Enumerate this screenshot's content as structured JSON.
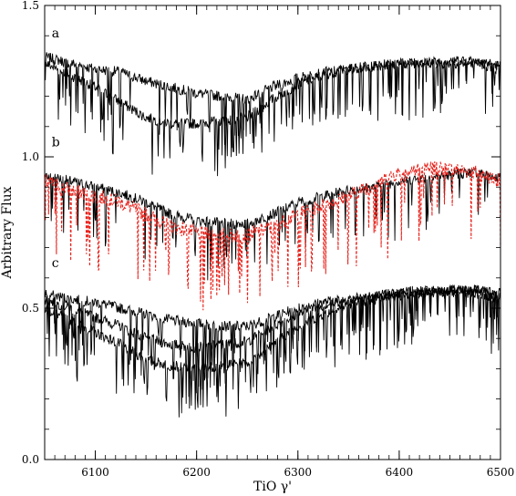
{
  "chart_data": {
    "type": "line",
    "title": "",
    "xlabel": "TiO γ'",
    "ylabel": "Arbitrary Flux",
    "xlim": [
      6050,
      6500
    ],
    "ylim": [
      0.0,
      1.5
    ],
    "x_ticks": [
      6100,
      6200,
      6300,
      6400,
      6500
    ],
    "x_tick_labels": [
      "6100",
      "6200",
      "6300",
      "6400",
      "6500"
    ],
    "y_ticks": [
      0.0,
      0.5,
      1.0,
      1.5
    ],
    "y_tick_labels": [
      "0.0",
      "0.5",
      "1.0",
      "1.5"
    ],
    "grid": false,
    "legend": "none",
    "panel_labels": [
      {
        "text": "a",
        "x": 6057,
        "y": 1.41
      },
      {
        "text": "b",
        "x": 6057,
        "y": 1.05
      },
      {
        "text": "c",
        "x": 6057,
        "y": 0.65
      }
    ],
    "series": [
      {
        "color": "#000000",
        "style": "solid",
        "x": [
          6050,
          6075,
          6100,
          6125,
          6150,
          6175,
          6200,
          6225,
          6250,
          6275,
          6300,
          6325,
          6350,
          6375,
          6400,
          6425,
          6450,
          6475,
          6500
        ],
        "y": [
          1.33,
          1.31,
          1.29,
          1.28,
          1.25,
          1.23,
          1.21,
          1.2,
          1.19,
          1.23,
          1.26,
          1.28,
          1.29,
          1.3,
          1.31,
          1.31,
          1.32,
          1.32,
          1.3
        ]
      },
      {
        "color": "#000000",
        "style": "solid",
        "x": [
          6050,
          6075,
          6100,
          6125,
          6150,
          6175,
          6200,
          6225,
          6250,
          6275,
          6300,
          6325,
          6350,
          6375,
          6400,
          6425,
          6450,
          6475,
          6500
        ],
        "y": [
          1.31,
          1.27,
          1.23,
          1.18,
          1.13,
          1.11,
          1.11,
          1.12,
          1.13,
          1.19,
          1.24,
          1.27,
          1.29,
          1.3,
          1.31,
          1.31,
          1.31,
          1.31,
          1.29
        ]
      },
      {
        "color": "#000000",
        "style": "solid",
        "x": [
          6050,
          6075,
          6100,
          6125,
          6150,
          6175,
          6200,
          6225,
          6250,
          6275,
          6300,
          6325,
          6350,
          6375,
          6400,
          6425,
          6450,
          6475,
          6500
        ],
        "y": [
          0.94,
          0.92,
          0.9,
          0.88,
          0.85,
          0.81,
          0.79,
          0.78,
          0.78,
          0.81,
          0.85,
          0.87,
          0.89,
          0.9,
          0.92,
          0.93,
          0.94,
          0.95,
          0.93
        ]
      },
      {
        "color": "#e8231c",
        "style": "dashed",
        "x": [
          6050,
          6075,
          6100,
          6125,
          6150,
          6175,
          6200,
          6225,
          6250,
          6275,
          6300,
          6325,
          6350,
          6375,
          6400,
          6425,
          6450,
          6475,
          6500
        ],
        "y": [
          0.92,
          0.89,
          0.87,
          0.85,
          0.81,
          0.77,
          0.75,
          0.74,
          0.74,
          0.77,
          0.81,
          0.84,
          0.87,
          0.91,
          0.95,
          0.96,
          0.96,
          0.95,
          0.92
        ]
      },
      {
        "color": "#000000",
        "style": "solid",
        "x": [
          6050,
          6075,
          6100,
          6125,
          6150,
          6175,
          6200,
          6225,
          6250,
          6275,
          6300,
          6325,
          6350,
          6375,
          6400,
          6425,
          6450,
          6475,
          6500
        ],
        "y": [
          0.55,
          0.53,
          0.52,
          0.5,
          0.48,
          0.46,
          0.45,
          0.44,
          0.44,
          0.47,
          0.5,
          0.52,
          0.53,
          0.54,
          0.55,
          0.56,
          0.56,
          0.56,
          0.55
        ]
      },
      {
        "color": "#000000",
        "style": "solid",
        "x": [
          6050,
          6075,
          6100,
          6125,
          6150,
          6175,
          6200,
          6225,
          6250,
          6275,
          6300,
          6325,
          6350,
          6375,
          6400,
          6425,
          6450,
          6475,
          6500
        ],
        "y": [
          0.53,
          0.5,
          0.47,
          0.44,
          0.4,
          0.38,
          0.37,
          0.38,
          0.39,
          0.44,
          0.48,
          0.51,
          0.53,
          0.54,
          0.55,
          0.55,
          0.56,
          0.56,
          0.54
        ]
      },
      {
        "color": "#000000",
        "style": "solid",
        "x": [
          6050,
          6075,
          6100,
          6125,
          6150,
          6175,
          6200,
          6225,
          6250,
          6275,
          6300,
          6325,
          6350,
          6375,
          6400,
          6425,
          6450,
          6475,
          6500
        ],
        "y": [
          0.5,
          0.46,
          0.42,
          0.38,
          0.33,
          0.31,
          0.3,
          0.31,
          0.32,
          0.38,
          0.44,
          0.48,
          0.51,
          0.53,
          0.54,
          0.55,
          0.55,
          0.55,
          0.53
        ]
      }
    ]
  }
}
